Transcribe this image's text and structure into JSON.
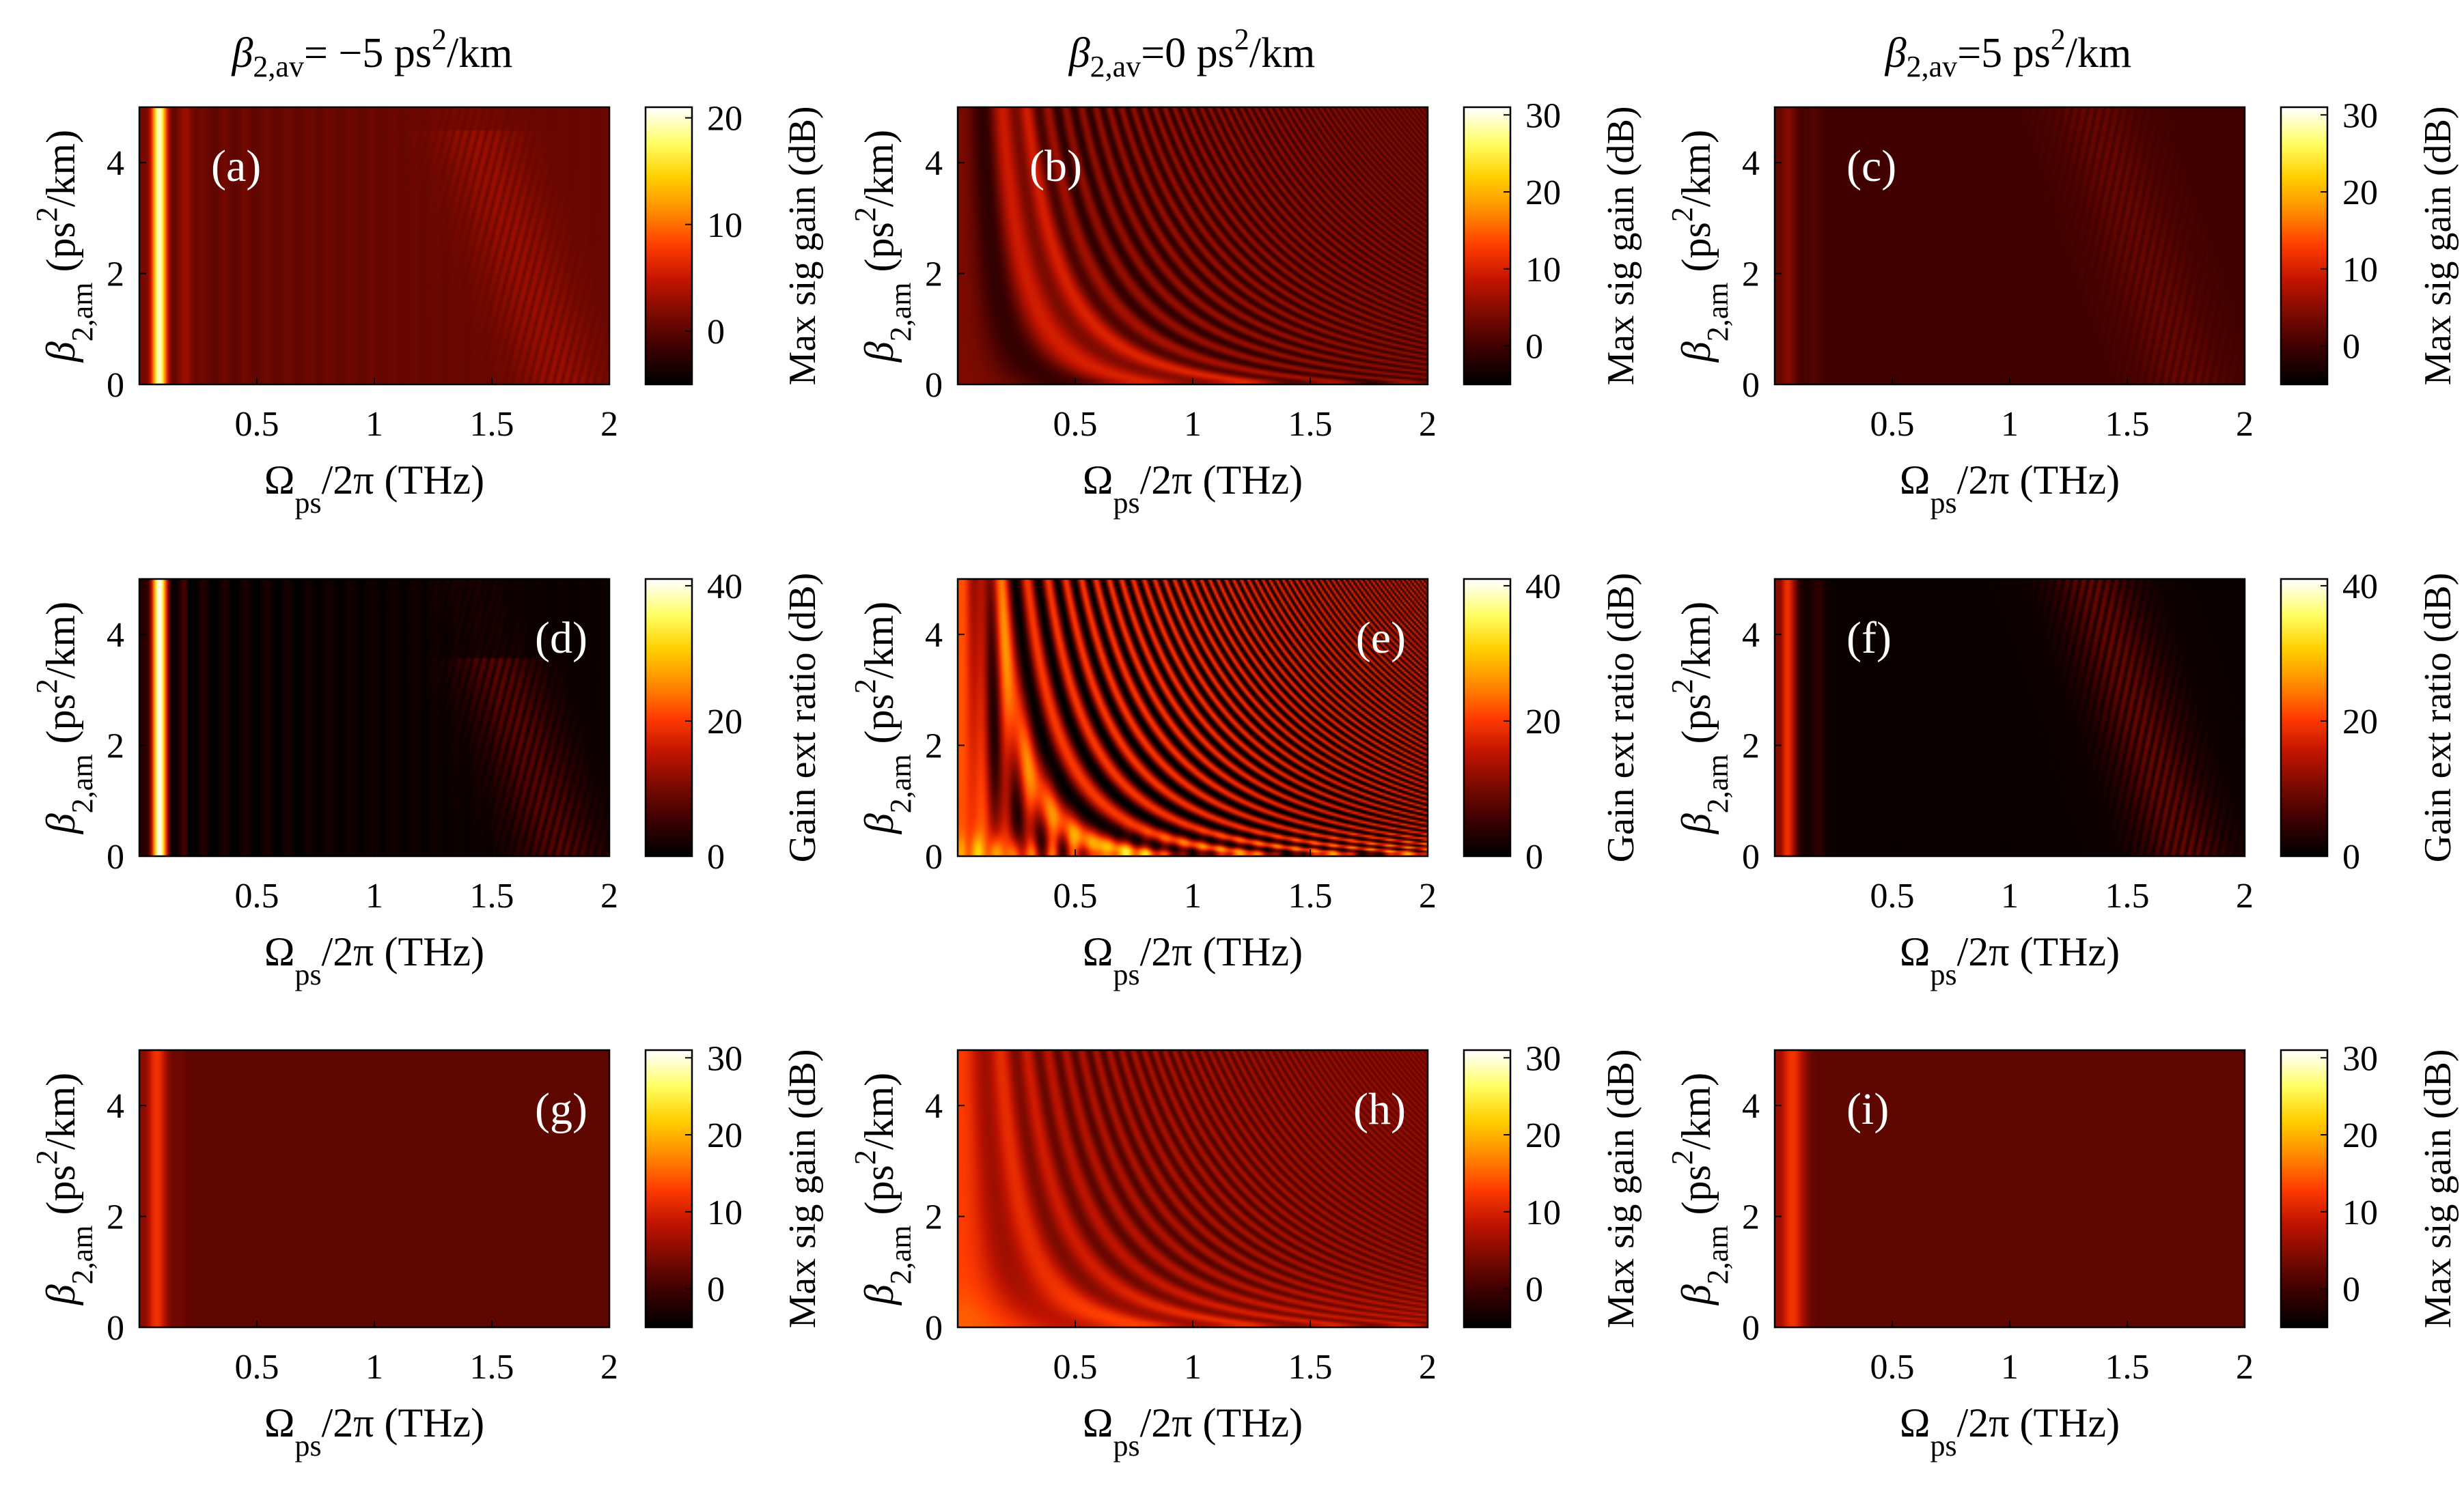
{
  "column_titles": [
    {
      "prefix": "β",
      "sub": "2,av",
      "mid": "= −5 ps",
      "sup": "2",
      "suffix": "/km"
    },
    {
      "prefix": "β",
      "sub": "2,av",
      "mid": "=0 ps",
      "sup": "2",
      "suffix": "/km"
    },
    {
      "prefix": "β",
      "sub": "2,av",
      "mid": "=5 ps",
      "sup": "2",
      "suffix": "/km"
    }
  ],
  "axes_text": {
    "x_main": "Ω",
    "x_sub": "ps",
    "x_rest": "/2π  (THz)",
    "y_main": "β",
    "y_sub": "2,am",
    "y_rest1": "  (ps",
    "y_sup": "2",
    "y_rest2": "/km)"
  },
  "colors": {
    "colormap": [
      "#000000",
      "#3a0000",
      "#7a0a00",
      "#c21400",
      "#ff3c00",
      "#ff8c00",
      "#ffd000",
      "#ffff66",
      "#ffffff"
    ]
  },
  "chart_data": [
    {
      "type": "heatmap",
      "label": "(a)",
      "colorbar_label": "Max sig gain (dB)",
      "clim": [
        -5,
        21
      ],
      "cbar_ticks": [
        "0",
        "10",
        "20"
      ],
      "cbar_tick_values": [
        0,
        10,
        20
      ],
      "xlim": [
        0,
        2
      ],
      "ylim": [
        0,
        5
      ],
      "xticks": [
        "0.5",
        "1",
        "1.5",
        "2"
      ],
      "xtick_values": [
        0.5,
        1,
        1.5,
        2
      ],
      "yticks": [
        "0",
        "2",
        "4"
      ],
      "ytick_values": [
        0,
        2,
        4
      ],
      "model": "neg_gain",
      "label_pos": "top-left"
    },
    {
      "type": "heatmap",
      "label": "(b)",
      "colorbar_label": "Max sig gain (dB)",
      "clim": [
        -5,
        31
      ],
      "cbar_ticks": [
        "0",
        "10",
        "20",
        "30"
      ],
      "cbar_tick_values": [
        0,
        10,
        20,
        30
      ],
      "xlim": [
        0,
        2
      ],
      "ylim": [
        0,
        5
      ],
      "xticks": [
        "0.5",
        "1",
        "1.5",
        "2"
      ],
      "xtick_values": [
        0.5,
        1,
        1.5,
        2
      ],
      "yticks": [
        "0",
        "2",
        "4"
      ],
      "ytick_values": [
        0,
        2,
        4
      ],
      "model": "zero_gain",
      "label_pos": "top-left"
    },
    {
      "type": "heatmap",
      "label": "(c)",
      "colorbar_label": "Max sig gain (dB)",
      "clim": [
        -5,
        31
      ],
      "cbar_ticks": [
        "0",
        "10",
        "20",
        "30"
      ],
      "cbar_tick_values": [
        0,
        10,
        20,
        30
      ],
      "xlim": [
        0,
        2
      ],
      "ylim": [
        0,
        5
      ],
      "xticks": [
        "0.5",
        "1",
        "1.5",
        "2"
      ],
      "xtick_values": [
        0.5,
        1,
        1.5,
        2
      ],
      "yticks": [
        "0",
        "2",
        "4"
      ],
      "ytick_values": [
        0,
        2,
        4
      ],
      "model": "pos_gain",
      "label_pos": "top-left"
    },
    {
      "type": "heatmap",
      "label": "(d)",
      "colorbar_label": "Gain ext ratio (dB)",
      "clim": [
        0,
        41
      ],
      "cbar_ticks": [
        "0",
        "20",
        "40"
      ],
      "cbar_tick_values": [
        0,
        20,
        40
      ],
      "xlim": [
        0,
        2
      ],
      "ylim": [
        0,
        5
      ],
      "xticks": [
        "0.5",
        "1",
        "1.5",
        "2"
      ],
      "xtick_values": [
        0.5,
        1,
        1.5,
        2
      ],
      "yticks": [
        "0",
        "2",
        "4"
      ],
      "ytick_values": [
        0,
        2,
        4
      ],
      "model": "neg_ext",
      "label_pos": "top-right"
    },
    {
      "type": "heatmap",
      "label": "(e)",
      "colorbar_label": "Gain ext ratio (dB)",
      "clim": [
        0,
        41
      ],
      "cbar_ticks": [
        "0",
        "20",
        "40"
      ],
      "cbar_tick_values": [
        0,
        20,
        40
      ],
      "xlim": [
        0,
        2
      ],
      "ylim": [
        0,
        5
      ],
      "xticks": [
        "0.5",
        "1",
        "1.5",
        "2"
      ],
      "xtick_values": [
        0.5,
        1,
        1.5,
        2
      ],
      "yticks": [
        "0",
        "2",
        "4"
      ],
      "ytick_values": [
        0,
        2,
        4
      ],
      "model": "zero_ext",
      "label_pos": "top-right"
    },
    {
      "type": "heatmap",
      "label": "(f)",
      "colorbar_label": "Gain ext ratio (dB)",
      "clim": [
        0,
        41
      ],
      "cbar_ticks": [
        "0",
        "20",
        "40"
      ],
      "cbar_tick_values": [
        0,
        20,
        40
      ],
      "xlim": [
        0,
        2
      ],
      "ylim": [
        0,
        5
      ],
      "xticks": [
        "0.5",
        "1",
        "1.5",
        "2"
      ],
      "xtick_values": [
        0.5,
        1,
        1.5,
        2
      ],
      "yticks": [
        "0",
        "2",
        "4"
      ],
      "ytick_values": [
        0,
        2,
        4
      ],
      "model": "pos_ext",
      "label_pos": "top-left"
    },
    {
      "type": "heatmap",
      "label": "(g)",
      "colorbar_label": "Max sig gain (dB)",
      "clim": [
        -5,
        31
      ],
      "cbar_ticks": [
        "0",
        "10",
        "20",
        "30"
      ],
      "cbar_tick_values": [
        0,
        10,
        20,
        30
      ],
      "xlim": [
        0,
        2
      ],
      "ylim": [
        0,
        5
      ],
      "xticks": [
        "0.5",
        "1",
        "1.5",
        "2"
      ],
      "xtick_values": [
        0.5,
        1,
        1.5,
        2
      ],
      "yticks": [
        "0",
        "2",
        "4"
      ],
      "ytick_values": [
        0,
        2,
        4
      ],
      "model": "neg_cw",
      "label_pos": "top-right"
    },
    {
      "type": "heatmap",
      "label": "(h)",
      "colorbar_label": "Max sig gain (dB)",
      "clim": [
        -5,
        31
      ],
      "cbar_ticks": [
        "0",
        "10",
        "20",
        "30"
      ],
      "cbar_tick_values": [
        0,
        10,
        20,
        30
      ],
      "xlim": [
        0,
        2
      ],
      "ylim": [
        0,
        5
      ],
      "xticks": [
        "0.5",
        "1",
        "1.5",
        "2"
      ],
      "xtick_values": [
        0.5,
        1,
        1.5,
        2
      ],
      "yticks": [
        "0",
        "2",
        "4"
      ],
      "ytick_values": [
        0,
        2,
        4
      ],
      "model": "zero_cw",
      "label_pos": "top-right"
    },
    {
      "type": "heatmap",
      "label": "(i)",
      "colorbar_label": "Max sig gain (dB)",
      "clim": [
        -5,
        31
      ],
      "cbar_ticks": [
        "0",
        "10",
        "20",
        "30"
      ],
      "cbar_tick_values": [
        0,
        10,
        20,
        30
      ],
      "xlim": [
        0,
        2
      ],
      "ylim": [
        0,
        5
      ],
      "xticks": [
        "0.5",
        "1",
        "1.5",
        "2"
      ],
      "xtick_values": [
        0.5,
        1,
        1.5,
        2
      ],
      "yticks": [
        "0",
        "2",
        "4"
      ],
      "ytick_values": [
        0,
        2,
        4
      ],
      "model": "pos_cw",
      "label_pos": "top-left"
    }
  ]
}
